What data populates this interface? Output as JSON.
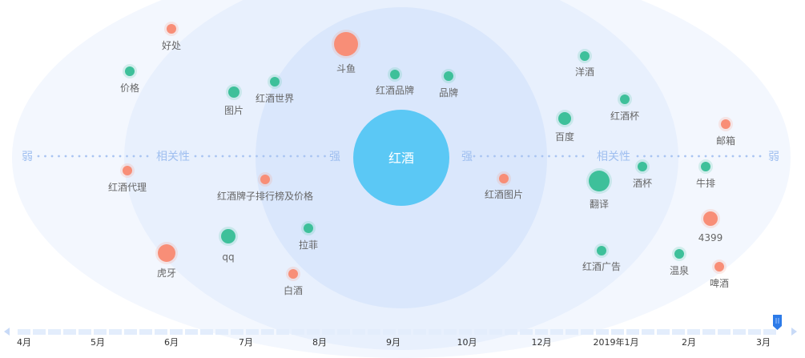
{
  "chart_data": {
    "type": "bubble",
    "center": {
      "label": "红酒",
      "color": "#5bc8f5"
    },
    "axis": {
      "left": "弱",
      "middle_left": "相关性",
      "inner_left": "强",
      "inner_right": "强",
      "middle_right": "相关性",
      "right": "弱"
    },
    "legend_colors": {
      "rising": "#f88e77",
      "falling": "#3ec09a"
    },
    "points": [
      {
        "label": "好处",
        "color": "#f88e77"
      },
      {
        "label": "价格",
        "color": "#3ec09a"
      },
      {
        "label": "斗鱼",
        "color": "#f88e77"
      },
      {
        "label": "图片",
        "color": "#3ec09a"
      },
      {
        "label": "红酒世界",
        "color": "#3ec09a"
      },
      {
        "label": "红酒品牌",
        "color": "#3ec09a"
      },
      {
        "label": "品牌",
        "color": "#3ec09a"
      },
      {
        "label": "洋酒",
        "color": "#3ec09a"
      },
      {
        "label": "红酒杯",
        "color": "#3ec09a"
      },
      {
        "label": "百度",
        "color": "#3ec09a"
      },
      {
        "label": "邮箱",
        "color": "#f88e77"
      },
      {
        "label": "红酒代理",
        "color": "#f88e77"
      },
      {
        "label": "红酒牌子排行榜及价格",
        "color": "#f88e77"
      },
      {
        "label": "红酒图片",
        "color": "#f88e77"
      },
      {
        "label": "翻译",
        "color": "#3ec09a"
      },
      {
        "label": "酒杯",
        "color": "#3ec09a"
      },
      {
        "label": "牛排",
        "color": "#3ec09a"
      },
      {
        "label": "4399",
        "color": "#f88e77"
      },
      {
        "label": "qq",
        "color": "#3ec09a"
      },
      {
        "label": "虎牙",
        "color": "#f88e77"
      },
      {
        "label": "拉菲",
        "color": "#3ec09a"
      },
      {
        "label": "白酒",
        "color": "#f88e77"
      },
      {
        "label": "红酒广告",
        "color": "#3ec09a"
      },
      {
        "label": "温泉",
        "color": "#3ec09a"
      },
      {
        "label": "啤酒",
        "color": "#f88e77"
      }
    ],
    "timeline": {
      "ticks": [
        "4月",
        "5月",
        "6月",
        "7月",
        "8月",
        "9月",
        "10月",
        "12月",
        "2019年1月",
        "2月",
        "3月"
      ],
      "selected": "3月"
    }
  }
}
